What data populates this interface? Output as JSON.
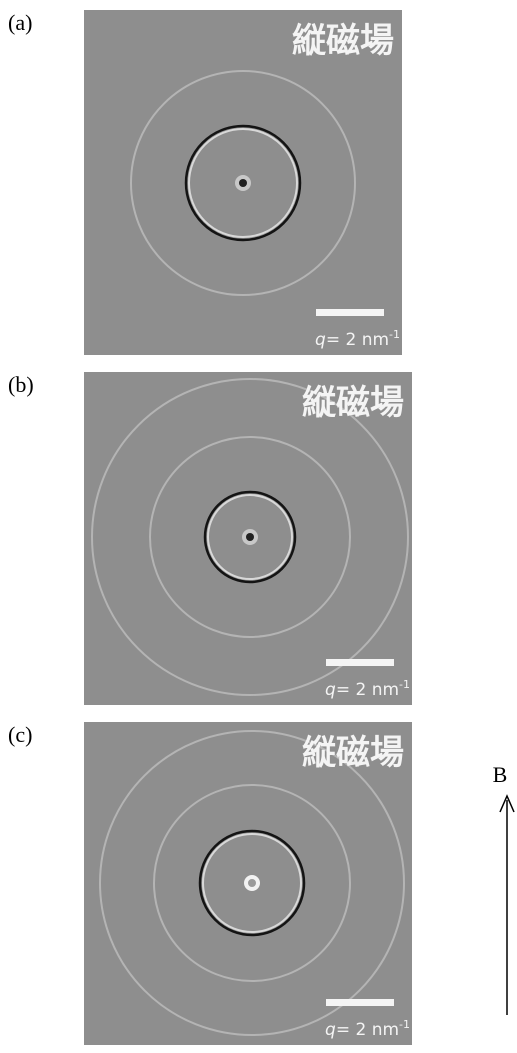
{
  "panels": [
    {
      "label": "(a)",
      "title": "縦磁場",
      "scale": {
        "symbol": "q",
        "text": "= 2 nm",
        "exponent": "-1"
      }
    },
    {
      "label": "(b)",
      "title": "縦磁場",
      "scale": {
        "symbol": "q",
        "text": "= 2 nm",
        "exponent": "-1"
      }
    },
    {
      "label": "(c)",
      "title": "縦磁場",
      "scale": {
        "symbol": "q",
        "text": "= 2 nm",
        "exponent": "-1"
      }
    }
  ],
  "field_axis": {
    "label": "B"
  }
}
